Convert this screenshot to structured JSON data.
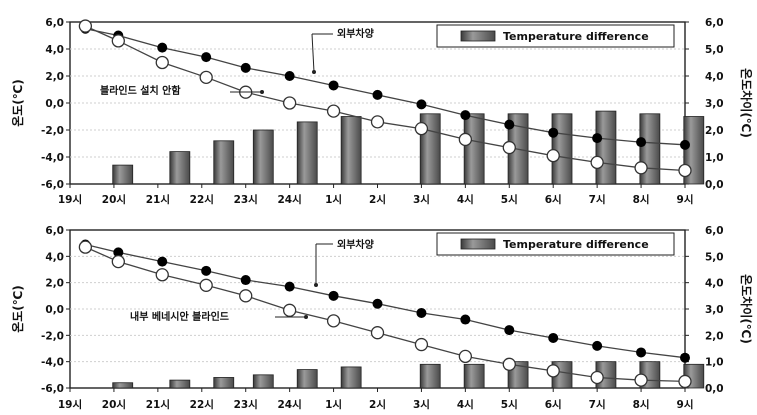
{
  "chart_data": [
    {
      "type": "bar+line",
      "categories": [
        "19시",
        "20시",
        "21시",
        "22시",
        "23시",
        "24시",
        "1시",
        "2시",
        "3시",
        "4시",
        "5시",
        "6시",
        "7시",
        "8시",
        "9시"
      ],
      "ylabel_left": "온도(℃)",
      "ylabel_right": "온도차이(℃)",
      "ylim_left": [
        -6,
        6
      ],
      "yticks_left": [
        "-6,0",
        "-4,0",
        "-2,0",
        "0,0",
        "2,0",
        "4,0",
        "6,0"
      ],
      "ylim_right": [
        0,
        6
      ],
      "yticks_right": [
        "0,0",
        "1,0",
        "2,0",
        "3,0",
        "4,0",
        "5,0",
        "6,0"
      ],
      "legend": "Temperature difference",
      "bar_values": [
        null,
        0.7,
        1.2,
        1.6,
        2.0,
        2.3,
        2.5,
        null,
        2.6,
        2.6,
        2.6,
        2.6,
        2.7,
        2.6,
        2.5
      ],
      "series": [
        {
          "name": "외부차양",
          "values": [
            5.5,
            5.0,
            4.1,
            3.4,
            2.6,
            2.0,
            1.3,
            0.6,
            -0.1,
            -0.9,
            -1.6,
            -2.2,
            -2.6,
            -2.9,
            -3.1
          ]
        },
        {
          "name": "블라인드 설치 안함",
          "values": [
            5.7,
            4.6,
            3.0,
            1.9,
            0.8,
            0.0,
            -0.6,
            -1.4,
            -1.9,
            -2.7,
            -3.3,
            -3.9,
            -4.4,
            -4.8,
            -5.0
          ]
        }
      ],
      "x_pos_lines": [
        0.35,
        1.1,
        2.1,
        3.1,
        4.0,
        5.0,
        6.0,
        7.0,
        8.0,
        9.0,
        10.0,
        11.0,
        12.0,
        13.0,
        14.0
      ],
      "x_pos_bars": [
        null,
        1.2,
        2.5,
        3.5,
        4.4,
        5.4,
        6.4,
        null,
        8.2,
        9.2,
        10.2,
        11.2,
        12.2,
        13.2,
        14.2
      ]
    },
    {
      "type": "bar+line",
      "categories": [
        "19시",
        "20시",
        "21시",
        "22시",
        "23시",
        "24시",
        "1시",
        "2시",
        "3시",
        "4시",
        "5시",
        "6시",
        "7시",
        "8시",
        "9시"
      ],
      "ylabel_left": "온도(℃)",
      "ylabel_right": "온도차이(℃)",
      "ylim_left": [
        -6,
        6
      ],
      "yticks_left": [
        "-6,0",
        "-4,0",
        "-2,0",
        "0,0",
        "2,0",
        "4,0",
        "6,0"
      ],
      "ylim_right": [
        0,
        6
      ],
      "yticks_right": [
        "0,0",
        "1,0",
        "2,0",
        "3,0",
        "4,0",
        "5,0",
        "6,0"
      ],
      "legend": "Temperature difference",
      "bar_values": [
        null,
        0.2,
        0.3,
        0.4,
        0.5,
        0.7,
        0.8,
        null,
        0.9,
        0.9,
        1.0,
        1.0,
        1.0,
        1.0,
        0.9
      ],
      "series": [
        {
          "name": "외부차양",
          "values": [
            4.9,
            4.3,
            3.6,
            2.9,
            2.2,
            1.7,
            1.0,
            0.4,
            -0.3,
            -0.8,
            -1.6,
            -2.2,
            -2.8,
            -3.3,
            -3.7
          ]
        },
        {
          "name": "내부 베네시안 블라인드",
          "values": [
            4.7,
            3.6,
            2.6,
            1.8,
            1.0,
            -0.1,
            -0.9,
            -1.8,
            -2.7,
            -3.6,
            -4.2,
            -4.7,
            -5.2,
            -5.4,
            -5.5
          ]
        }
      ],
      "x_pos_lines": [
        0.35,
        1.1,
        2.1,
        3.1,
        4.0,
        5.0,
        6.0,
        7.0,
        8.0,
        9.0,
        10.0,
        11.0,
        12.0,
        13.0,
        14.0
      ],
      "x_pos_bars": [
        null,
        1.2,
        2.5,
        3.5,
        4.4,
        5.4,
        6.4,
        null,
        8.2,
        9.2,
        10.2,
        11.2,
        12.2,
        13.2,
        14.2
      ]
    }
  ]
}
